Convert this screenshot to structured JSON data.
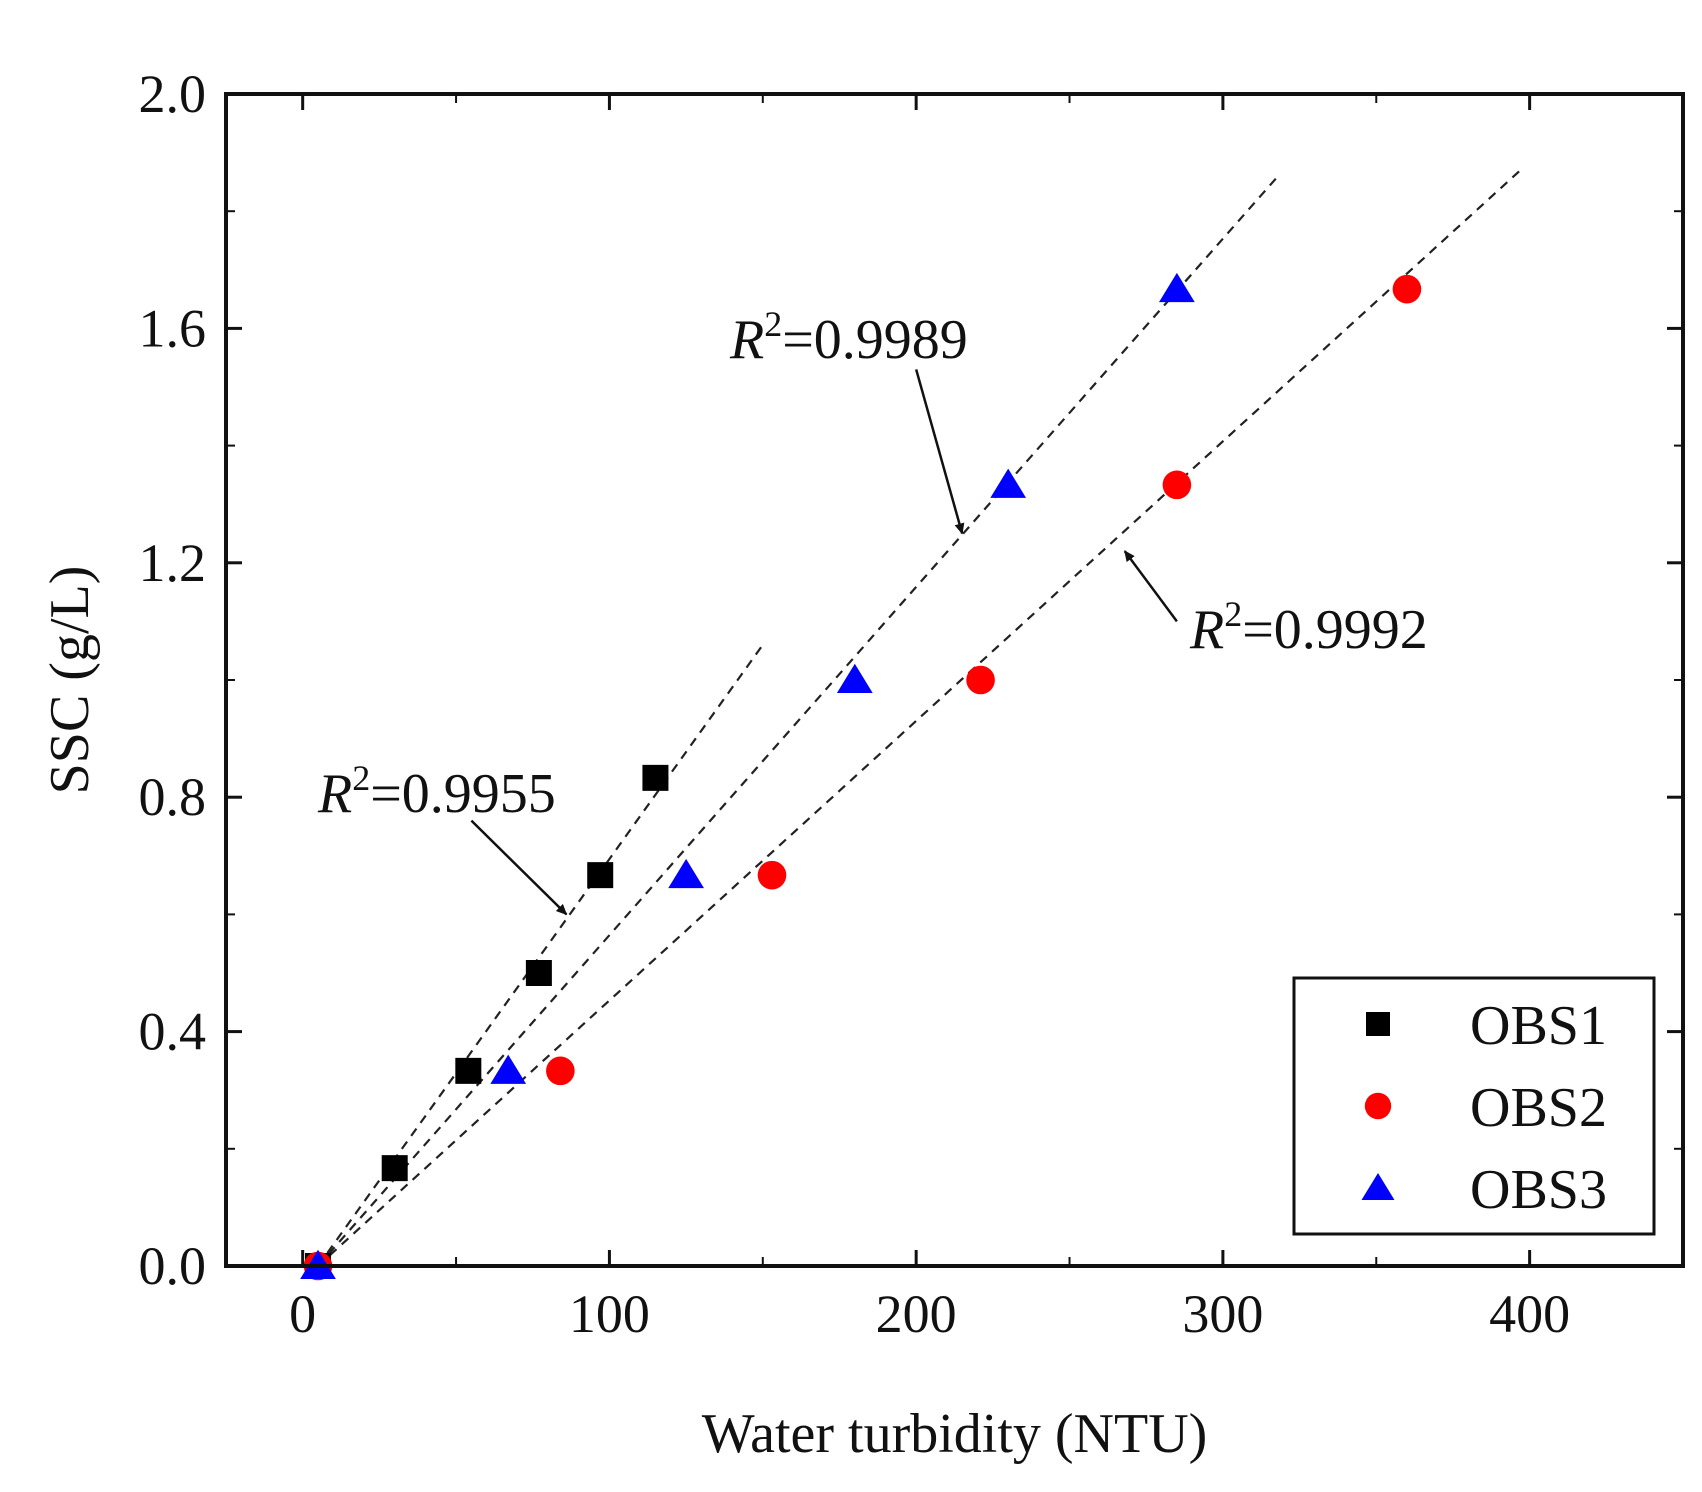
{
  "chart_data": {
    "type": "scatter",
    "xlabel": "Water turbidity (NTU)",
    "ylabel": "SSC (g/L)",
    "xlim": [
      -25,
      450
    ],
    "ylim": [
      0,
      2.0
    ],
    "xticks": [
      0,
      100,
      200,
      300,
      400
    ],
    "xtick_labels": [
      "0",
      "100",
      "200",
      "300",
      "400"
    ],
    "yticks": [
      0.0,
      0.4,
      0.8,
      1.2,
      1.6,
      2.0
    ],
    "ytick_labels": [
      "0.0",
      "0.4",
      "0.8",
      "1.2",
      "1.6",
      "2.0"
    ],
    "grid": false,
    "legend_position": "bottom-right",
    "series": [
      {
        "name": "OBS1",
        "marker": "square",
        "color": "#000000",
        "points": [
          [
            5,
            0.0
          ],
          [
            30,
            0.167
          ],
          [
            54,
            0.333
          ],
          [
            77,
            0.5
          ],
          [
            97,
            0.667
          ],
          [
            115,
            0.833
          ]
        ],
        "fit_line": [
          [
            5,
            0.0
          ],
          [
            150,
            1.06
          ]
        ]
      },
      {
        "name": "OBS2",
        "marker": "circle",
        "color": "#ff0000",
        "points": [
          [
            5,
            0.0
          ],
          [
            84,
            0.333
          ],
          [
            153,
            0.667
          ],
          [
            221,
            1.0
          ],
          [
            285,
            1.333
          ],
          [
            360,
            1.667
          ]
        ],
        "fit_line": [
          [
            5,
            0.0
          ],
          [
            397,
            1.87
          ]
        ]
      },
      {
        "name": "OBS3",
        "marker": "triangle",
        "color": "#0000ff",
        "points": [
          [
            5,
            0.0
          ],
          [
            67,
            0.333
          ],
          [
            125,
            0.667
          ],
          [
            180,
            1.0
          ],
          [
            230,
            1.333
          ],
          [
            285,
            1.667
          ]
        ],
        "fit_line": [
          [
            5,
            0.0
          ],
          [
            318,
            1.86
          ]
        ]
      }
    ],
    "annotations": [
      {
        "prefix": "R",
        "superscript": "2",
        "text": "=0.9955",
        "arrow_from": [
          55,
          0.76
        ],
        "arrow_to": [
          86,
          0.6
        ]
      },
      {
        "prefix": "R",
        "superscript": "2",
        "text": "=0.9989",
        "arrow_from": [
          200,
          1.53
        ],
        "arrow_to": [
          215,
          1.25
        ]
      },
      {
        "prefix": "R",
        "superscript": "2",
        "text": "=0.9992",
        "arrow_from": [
          285,
          1.1
        ],
        "arrow_to": [
          268,
          1.22
        ]
      }
    ]
  }
}
